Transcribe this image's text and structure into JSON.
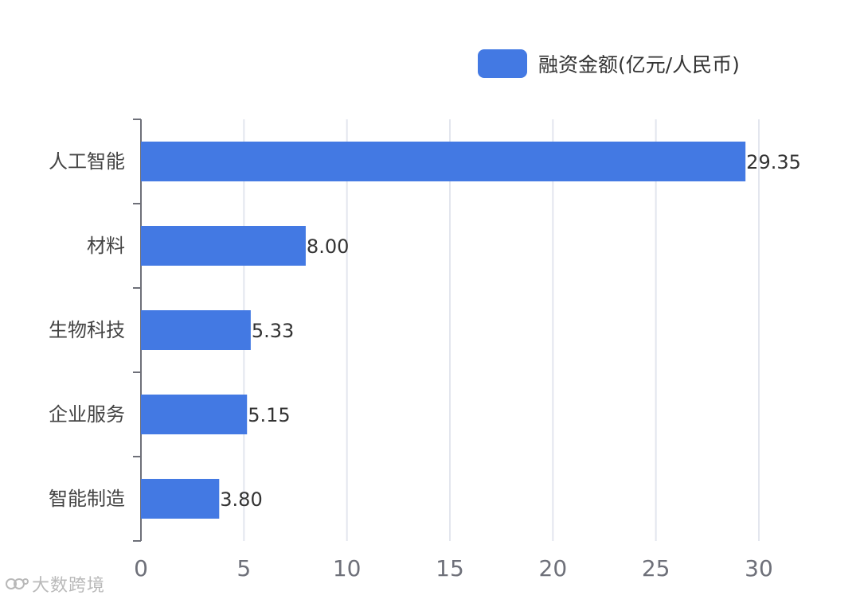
{
  "legend": {
    "label": "融资金额(亿元/人民币)",
    "color": "#4379E3"
  },
  "watermark": {
    "text": "大数跨境",
    "icon": "watermark-logo-icon"
  },
  "chart_data": {
    "type": "bar",
    "orientation": "horizontal",
    "categories": [
      "人工智能",
      "材料",
      "生物科技",
      "企业服务",
      "智能制造"
    ],
    "series": [
      {
        "name": "融资金额(亿元/人民币)",
        "values": [
          29.35,
          8.0,
          5.33,
          5.15,
          3.8
        ],
        "value_labels": [
          "29.35",
          "8.00",
          "5.33",
          "5.15",
          "3.80"
        ],
        "color": "#4379E3"
      }
    ],
    "xticks": [
      "0",
      "5",
      "10",
      "15",
      "20",
      "25",
      "30"
    ],
    "xlim": [
      0,
      30
    ],
    "xlabel": "",
    "ylabel": "",
    "grid": true,
    "legend_position": "top-right"
  }
}
